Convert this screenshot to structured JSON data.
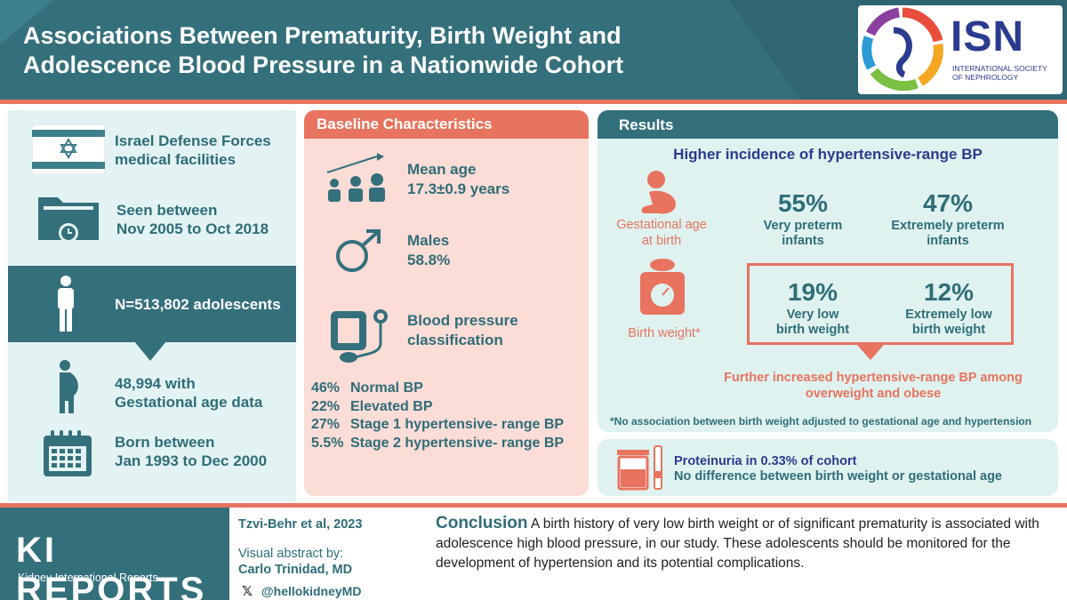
{
  "header": {
    "title_line1": "Associations Between Prematurity, Birth Weight and",
    "title_line2": "Adolescence Blood Pressure in a Nationwide Cohort",
    "logo_text": "ISN",
    "logo_sub_line1": "INTERNATIONAL SOCIETY",
    "logo_sub_line2": "OF NEPHROLOGY"
  },
  "left": {
    "flag": {
      "line1": "Israel Defense Forces",
      "line2": "medical facilities"
    },
    "seen": {
      "line1": "Seen between",
      "line2": "Nov 2005 to Oct 2018"
    },
    "n": "N=513,802 adolescents",
    "gest": {
      "line1": "48,994 with",
      "line2": "Gestational age data"
    },
    "born": {
      "line1": "Born between",
      "line2": "Jan 1993 to Dec 2000"
    }
  },
  "baseline": {
    "heading": "Baseline Characteristics",
    "age": {
      "line1": "Mean age",
      "line2": "17.3±0.9 years"
    },
    "males": {
      "line1": "Males",
      "line2": "58.8%"
    },
    "bp": {
      "line1": "Blood pressure",
      "line2": "classification"
    },
    "bp_list": [
      {
        "pct": "46%",
        "label": "Normal BP"
      },
      {
        "pct": "22%",
        "label": "Elevated BP"
      },
      {
        "pct": "27%",
        "label": "Stage 1 hypertensive- range BP"
      },
      {
        "pct": "5.5%",
        "label": "Stage 2 hypertensive- range BP"
      }
    ]
  },
  "results": {
    "heading": "Results",
    "higher": "Higher incidence of hypertensive-range BP",
    "gest_label": {
      "line1": "Gestational age",
      "line2": "at birth"
    },
    "bw_label": "Birth weight*",
    "very_preterm": {
      "num": "55%",
      "line1": "Very preterm",
      "line2": "infants"
    },
    "extremely_preterm": {
      "num": "47%",
      "line1": "Extremely preterm",
      "line2": "infants"
    },
    "very_low_bw": {
      "num": "19%",
      "line1": "Very low",
      "line2": "birth weight"
    },
    "extremely_low_bw": {
      "num": "12%",
      "line1": "Extremely low",
      "line2": "birth weight"
    },
    "further_line1": "Further increased hypertensive-range BP among",
    "further_line2": "overweight and obese",
    "note": "*No association between birth weight adjusted to gestational age and hypertension"
  },
  "proteinuria": {
    "line1": "Proteinuria in 0.33% of cohort",
    "line2": "No difference between birth weight or gestational age"
  },
  "footer": {
    "ki": "KI REPORTS",
    "ki_sub": "Kidney International Reports",
    "citation": "Tzvi-Behr et al, 2023",
    "va_label": "Visual abstract by:",
    "va_name": "Carlo Trinidad, MD",
    "handle": "@hellokidneyMD",
    "x_glyph": "𝕏",
    "conclusion_head": "Conclusion",
    "conclusion_text": "A birth history of very low birth weight or of significant prematurity is associated with adolescence high blood pressure, in our study. These adolescents should be monitored for the development of hypertension and its potential complications."
  },
  "colors": {
    "teal": "#34707c",
    "coral": "#e8735f",
    "navy": "#2b3b8f",
    "mint": "#dff2ef",
    "pink": "#fbdcd6"
  }
}
